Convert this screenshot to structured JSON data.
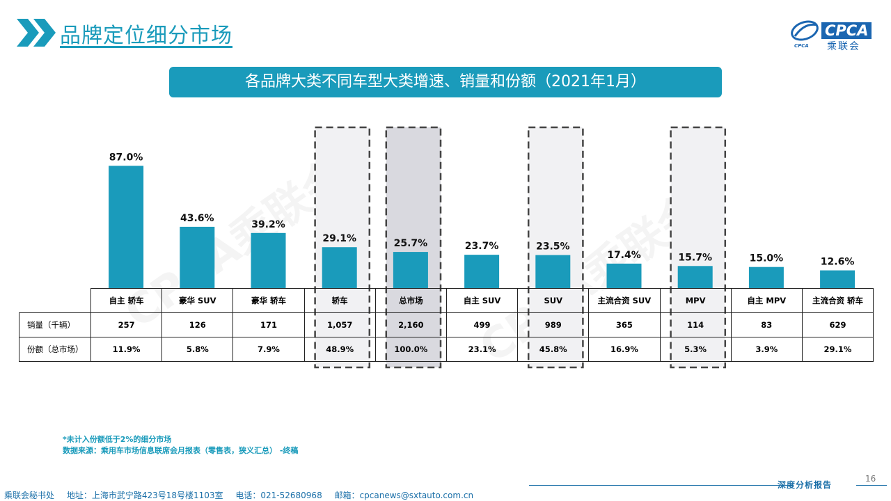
{
  "header": {
    "title": "品牌定位细分市场",
    "logo_text": "CPCA",
    "logo_sub": "乘联会",
    "logo_mark": "CPCA"
  },
  "banner": "各品牌大类不同车型大类增速、销量和份额（2021年1月）",
  "watermark": "CPCA乘联会",
  "table": {
    "row_labels": [
      "销量（千辆）",
      "份额（总市场）"
    ],
    "categories": [
      "自主 轿车",
      "豪华 SUV",
      "豪华 轿车",
      "轿车",
      "总市场",
      "自主 SUV",
      "SUV",
      "主流合资 SUV",
      "MPV",
      "自主 MPV",
      "主流合资 轿车"
    ],
    "sales": [
      "257",
      "126",
      "171",
      "1,057",
      "2,160",
      "499",
      "989",
      "365",
      "114",
      "83",
      "629"
    ],
    "shares": [
      "11.9%",
      "5.8%",
      "7.9%",
      "48.9%",
      "100.0%",
      "23.1%",
      "45.8%",
      "16.9%",
      "5.3%",
      "3.9%",
      "29.1%"
    ]
  },
  "chart_data": {
    "type": "bar",
    "categories": [
      "自主 轿车",
      "豪华 SUV",
      "豪华 轿车",
      "轿车",
      "总市场",
      "自主 SUV",
      "SUV",
      "主流合资 SUV",
      "MPV",
      "自主 MPV",
      "主流合资 轿车"
    ],
    "values": [
      87.0,
      43.6,
      39.2,
      29.1,
      25.7,
      23.7,
      23.5,
      17.4,
      15.7,
      15.0,
      12.6
    ],
    "value_labels": [
      "87.0%",
      "43.6%",
      "39.2%",
      "29.1%",
      "25.7%",
      "23.7%",
      "23.5%",
      "17.4%",
      "15.7%",
      "15.0%",
      "12.6%"
    ],
    "highlighted": [
      "轿车",
      "总市场",
      "SUV",
      "MPV"
    ],
    "emphasized": "总市场",
    "bar_color": "#1a9bbb",
    "grid": false,
    "legend": "none",
    "title": "",
    "xlabel": "",
    "ylabel": ""
  },
  "notes": [
    "*未计入份额低于2%的细分市场",
    "数据来源：乘用车市场信息联席会月报表（零售表，狭义汇总）  -终稿"
  ],
  "footer": {
    "org": "乘联会秘书处",
    "address": "地址：上海市武宁路423号18号楼1103室",
    "phone": "电话：021-52680968",
    "email": "邮箱：cpcanews@sxtauto.com.cn",
    "report_tag": "深度分析报告",
    "page_number": "16"
  },
  "colors": {
    "accent": "#1a9bbb",
    "brand_blue": "#1b66b1",
    "highlight_bg": "#f1f1f3",
    "emphasis_bg": "#d9d9df"
  }
}
